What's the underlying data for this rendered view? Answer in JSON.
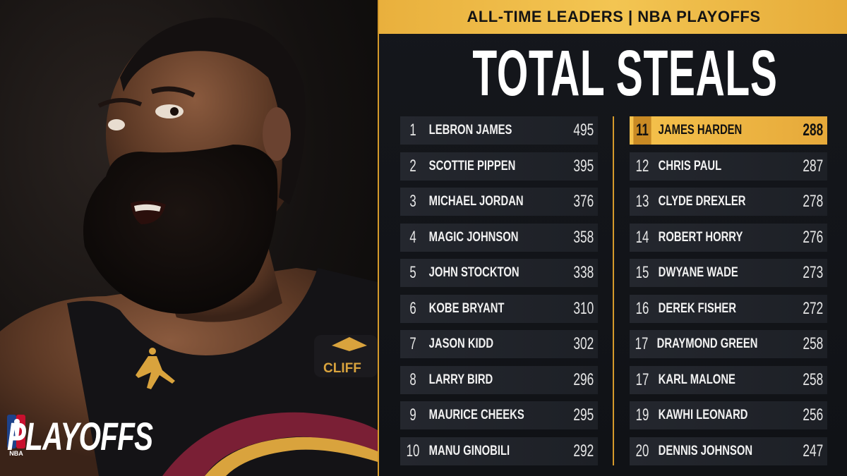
{
  "header": {
    "banner": "ALL-TIME LEADERS | NBA PLAYOFFS",
    "title": "TOTAL STEALS"
  },
  "brand": {
    "wordmark": "PLAYOFFS",
    "league_logo": "NBA",
    "jersey_sponsor": "CLIFF"
  },
  "colors": {
    "accent_gold": "#f3c552",
    "panel_bg": "#121418",
    "row_bg": "#23262d",
    "jersey_wine": "#7a1f35"
  },
  "leaders_left": [
    {
      "rank": "1",
      "name": "LEBRON JAMES",
      "steals": "495"
    },
    {
      "rank": "2",
      "name": "SCOTTIE PIPPEN",
      "steals": "395"
    },
    {
      "rank": "3",
      "name": "MICHAEL JORDAN",
      "steals": "376"
    },
    {
      "rank": "4",
      "name": "MAGIC JOHNSON",
      "steals": "358"
    },
    {
      "rank": "5",
      "name": "JOHN STOCKTON",
      "steals": "338"
    },
    {
      "rank": "6",
      "name": "KOBE BRYANT",
      "steals": "310"
    },
    {
      "rank": "7",
      "name": "JASON KIDD",
      "steals": "302"
    },
    {
      "rank": "8",
      "name": "LARRY BIRD",
      "steals": "296"
    },
    {
      "rank": "9",
      "name": "MAURICE CHEEKS",
      "steals": "295"
    },
    {
      "rank": "10",
      "name": "MANU GINOBILI",
      "steals": "292"
    }
  ],
  "leaders_right": [
    {
      "rank": "11",
      "name": "JAMES HARDEN",
      "steals": "288",
      "highlighted": true
    },
    {
      "rank": "12",
      "name": "CHRIS PAUL",
      "steals": "287"
    },
    {
      "rank": "13",
      "name": "CLYDE DREXLER",
      "steals": "278"
    },
    {
      "rank": "14",
      "name": "ROBERT HORRY",
      "steals": "276"
    },
    {
      "rank": "15",
      "name": "DWYANE WADE",
      "steals": "273"
    },
    {
      "rank": "16",
      "name": "DEREK FISHER",
      "steals": "272"
    },
    {
      "rank": "17",
      "name": "DRAYMOND GREEN",
      "steals": "258"
    },
    {
      "rank": "17",
      "name": "KARL MALONE",
      "steals": "258"
    },
    {
      "rank": "19",
      "name": "KAWHI LEONARD",
      "steals": "256"
    },
    {
      "rank": "20",
      "name": "DENNIS JOHNSON",
      "steals": "247"
    }
  ]
}
